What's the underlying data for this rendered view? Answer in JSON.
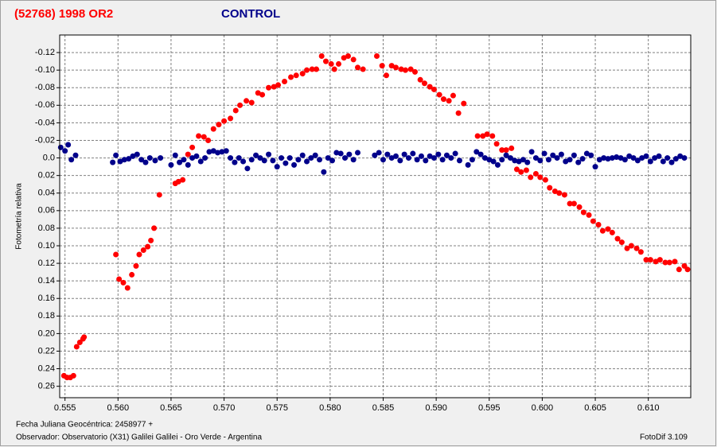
{
  "chart_data": {
    "type": "scatter",
    "y_label": "Fotometría relativa",
    "xlim": [
      0.5545,
      0.614
    ],
    "xticks": [
      0.555,
      {
        "value": 0.56,
        "label": "0.560"
      },
      0.565,
      {
        "value": 0.57,
        "label": "0.570"
      },
      0.575,
      {
        "value": 0.58,
        "label": "0.580"
      },
      0.585,
      {
        "value": 0.59,
        "label": "0.590"
      },
      0.595,
      {
        "value": 0.6,
        "label": "0.600"
      },
      0.605,
      {
        "value": 0.61,
        "label": "0.610"
      }
    ],
    "ylim": [
      0.273,
      -0.14
    ],
    "yticks": [
      -0.12,
      {
        "value": -0.1,
        "label": "-0.10"
      },
      -0.08,
      -0.06,
      -0.04,
      -0.02,
      {
        "value": 0,
        "label": "0.0"
      },
      0.02,
      0.04,
      0.06,
      0.08,
      {
        "value": 0.1,
        "label": "0.10"
      },
      0.12,
      0.14,
      0.16,
      0.18,
      {
        "value": 0.2,
        "label": "0.20"
      },
      0.22,
      0.24,
      0.26
    ],
    "grid": true,
    "series": [
      {
        "name": "(52768) 1998 OR2",
        "color": "#ff0000",
        "x": [
          0.5549,
          0.5552,
          0.5555,
          0.5558,
          0.5561,
          0.5564,
          0.5567,
          0.5568,
          0.5598,
          0.5601,
          0.5605,
          0.5609,
          0.5613,
          0.5617,
          0.562,
          0.5624,
          0.5628,
          0.5631,
          0.5634,
          0.5639,
          0.5654,
          0.5657,
          0.5661,
          0.5666,
          0.567,
          0.5676,
          0.5681,
          0.5685,
          0.569,
          0.5695,
          0.57,
          0.5706,
          0.5711,
          0.5715,
          0.5721,
          0.5726,
          0.5732,
          0.5736,
          0.5742,
          0.5747,
          0.5751,
          0.5757,
          0.5763,
          0.5768,
          0.5774,
          0.5778,
          0.5783,
          0.5787,
          0.5792,
          0.5796,
          0.5801,
          0.5804,
          0.5808,
          0.5813,
          0.5817,
          0.5822,
          0.5826,
          0.5831,
          0.5844,
          0.5849,
          0.5853,
          0.5858,
          0.5862,
          0.5867,
          0.5871,
          0.5876,
          0.588,
          0.5885,
          0.5889,
          0.5894,
          0.5898,
          0.5903,
          0.5907,
          0.5912,
          0.5916,
          0.5921,
          0.5926,
          0.5939,
          0.5944,
          0.5948,
          0.5953,
          0.5957,
          0.5962,
          0.5966,
          0.5971,
          0.5976,
          0.598,
          0.5985,
          0.5989,
          0.5994,
          0.5998,
          0.6003,
          0.6007,
          0.6012,
          0.6016,
          0.6021,
          0.6026,
          0.603,
          0.6035,
          0.6039,
          0.6044,
          0.6048,
          0.6053,
          0.6057,
          0.6062,
          0.6066,
          0.6071,
          0.6075,
          0.608,
          0.6084,
          0.6089,
          0.6093,
          0.6098,
          0.6102,
          0.6107,
          0.6111,
          0.6116,
          0.612,
          0.6125,
          0.6129,
          0.6134,
          0.6137
        ],
        "values": [
          0.248,
          0.25,
          0.25,
          0.248,
          0.215,
          0.21,
          0.206,
          0.204,
          0.11,
          0.138,
          0.142,
          0.148,
          0.133,
          0.123,
          0.11,
          0.105,
          0.101,
          0.094,
          0.08,
          0.042,
          0.029,
          0.027,
          0.025,
          -0.004,
          -0.012,
          -0.025,
          -0.024,
          -0.02,
          -0.033,
          -0.038,
          -0.042,
          -0.045,
          -0.054,
          -0.06,
          -0.065,
          -0.063,
          -0.074,
          -0.072,
          -0.08,
          -0.081,
          -0.083,
          -0.087,
          -0.092,
          -0.094,
          -0.096,
          -0.1,
          -0.101,
          -0.101,
          -0.116,
          -0.11,
          -0.107,
          -0.101,
          -0.107,
          -0.114,
          -0.116,
          -0.112,
          -0.103,
          -0.101,
          -0.116,
          -0.105,
          -0.094,
          -0.105,
          -0.103,
          -0.101,
          -0.1,
          -0.101,
          -0.098,
          -0.089,
          -0.085,
          -0.081,
          -0.078,
          -0.072,
          -0.067,
          -0.065,
          -0.071,
          -0.051,
          -0.062,
          -0.025,
          -0.025,
          -0.027,
          -0.025,
          -0.016,
          -0.009,
          -0.009,
          -0.011,
          0.013,
          0.016,
          0.014,
          0.022,
          0.018,
          0.022,
          0.025,
          0.034,
          0.038,
          0.04,
          0.042,
          0.052,
          0.052,
          0.056,
          0.062,
          0.065,
          0.072,
          0.076,
          0.083,
          0.081,
          0.085,
          0.092,
          0.096,
          0.103,
          0.1,
          0.103,
          0.107,
          0.116,
          0.116,
          0.118,
          0.116,
          0.119,
          0.119,
          0.118,
          0.127,
          0.123,
          0.127
        ]
      },
      {
        "name": "CONTROL",
        "color": "#00008b",
        "x": [
          0.5546,
          0.555,
          0.5553,
          0.5556,
          0.556,
          0.5595,
          0.5598,
          0.5602,
          0.5606,
          0.561,
          0.5614,
          0.5618,
          0.5622,
          0.5626,
          0.563,
          0.5635,
          0.564,
          0.565,
          0.5654,
          0.5658,
          0.5662,
          0.5666,
          0.567,
          0.5674,
          0.5678,
          0.5682,
          0.5686,
          0.569,
          0.5694,
          0.5698,
          0.5702,
          0.5706,
          0.571,
          0.5714,
          0.5718,
          0.5722,
          0.5726,
          0.573,
          0.5734,
          0.5738,
          0.5742,
          0.5746,
          0.575,
          0.5754,
          0.5758,
          0.5762,
          0.5766,
          0.577,
          0.5774,
          0.5778,
          0.5782,
          0.5786,
          0.579,
          0.5794,
          0.5798,
          0.5802,
          0.5806,
          0.581,
          0.5814,
          0.5818,
          0.5822,
          0.5826,
          0.5842,
          0.5846,
          0.585,
          0.5854,
          0.5858,
          0.5862,
          0.5866,
          0.587,
          0.5874,
          0.5878,
          0.5882,
          0.5886,
          0.589,
          0.5894,
          0.5898,
          0.5902,
          0.5906,
          0.591,
          0.5914,
          0.5918,
          0.5922,
          0.593,
          0.5934,
          0.5938,
          0.5942,
          0.5946,
          0.595,
          0.5954,
          0.5958,
          0.5962,
          0.5966,
          0.597,
          0.5974,
          0.5978,
          0.5982,
          0.5986,
          0.599,
          0.5994,
          0.5998,
          0.6002,
          0.6006,
          0.601,
          0.6014,
          0.6018,
          0.6022,
          0.6026,
          0.603,
          0.6034,
          0.6038,
          0.6042,
          0.6046,
          0.605,
          0.6054,
          0.6058,
          0.6062,
          0.6066,
          0.607,
          0.6074,
          0.6078,
          0.6082,
          0.6086,
          0.609,
          0.6094,
          0.6098,
          0.6102,
          0.6106,
          0.611,
          0.6114,
          0.6118,
          0.6122,
          0.6126,
          0.613,
          0.6134
        ],
        "values": [
          -0.012,
          -0.008,
          -0.015,
          0.002,
          -0.003,
          0.005,
          -0.003,
          0.004,
          0.002,
          0.001,
          -0.002,
          -0.004,
          0.002,
          0.005,
          0,
          0.003,
          0,
          0.008,
          -0.003,
          0.005,
          0.002,
          0.008,
          0,
          -0.002,
          0.004,
          0,
          -0.007,
          -0.008,
          -0.006,
          -0.007,
          -0.008,
          0,
          0.005,
          0,
          0.004,
          0.012,
          0.002,
          -0.003,
          0,
          0.003,
          -0.004,
          0.003,
          0.01,
          0,
          0.006,
          0,
          0.008,
          0.002,
          -0.003,
          0.004,
          0,
          -0.003,
          0.002,
          0.016,
          0,
          0.003,
          -0.006,
          -0.005,
          0,
          -0.004,
          0.002,
          -0.006,
          -0.003,
          -0.006,
          0.002,
          -0.004,
          0,
          -0.002,
          0.003,
          -0.004,
          0,
          -0.005,
          0.002,
          -0.002,
          0.003,
          -0.002,
          0,
          -0.004,
          0.002,
          -0.003,
          0,
          -0.005,
          0.003,
          0.008,
          0.002,
          -0.007,
          -0.004,
          0,
          0.002,
          0.004,
          0.008,
          0.002,
          -0.003,
          0,
          0.003,
          0.004,
          0.002,
          0.005,
          -0.007,
          0,
          0.003,
          -0.005,
          0.002,
          -0.003,
          0,
          -0.004,
          0.004,
          0.002,
          -0.003,
          0.005,
          0.001,
          -0.005,
          -0.003,
          0.01,
          0.002,
          0,
          0.001,
          0,
          -0.001,
          0,
          0.002,
          -0.002,
          0,
          0.003,
          0,
          -0.002,
          0.004,
          0,
          -0.002,
          0.004,
          0,
          0.005,
          0.001,
          -0.002,
          0
        ]
      }
    ]
  },
  "footer": {
    "date_label": "Fecha Juliana Geocéntrica: 2458977 +",
    "observer": "Observador: Observatorio (X31) Galilei Galilei - Oro Verde - Argentina",
    "software": "FotoDif 3.109"
  }
}
